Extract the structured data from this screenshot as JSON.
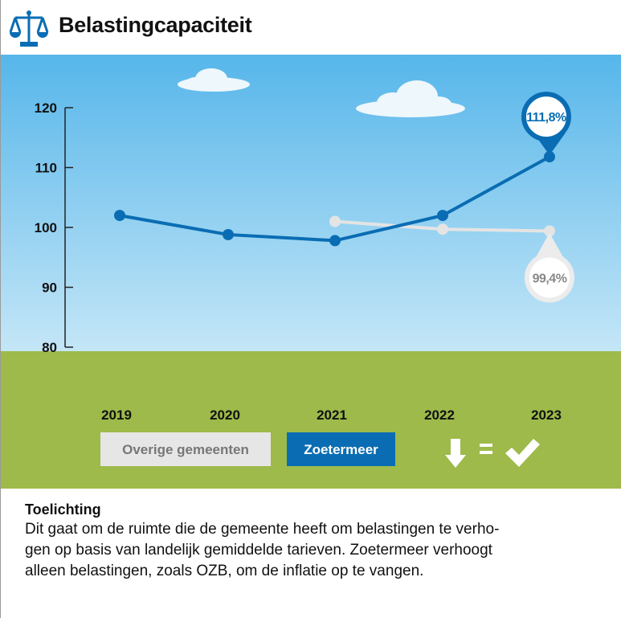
{
  "header": {
    "title": "Belastingcapaciteit"
  },
  "chart_data": {
    "type": "line",
    "categories": [
      "2019",
      "2020",
      "2021",
      "2022",
      "2023"
    ],
    "series": [
      {
        "name": "Overige gemeenten",
        "color": "#e4e4e4",
        "values": [
          null,
          null,
          101.0,
          99.7,
          99.4
        ],
        "value_labels": [
          null,
          null,
          null,
          null,
          "99,4%"
        ]
      },
      {
        "name": "Zoetermeer",
        "color": "#0a6db3",
        "values": [
          102.0,
          98.8,
          97.8,
          102.0,
          111.8
        ],
        "value_labels": [
          null,
          null,
          null,
          null,
          "111,8%"
        ]
      }
    ],
    "ylim": [
      80,
      120
    ],
    "yticks": [
      80,
      90,
      100,
      110,
      120
    ]
  },
  "explanation": {
    "title": "Toelichting",
    "lines": [
      "Dit gaat om de ruimte die de gemeente heeft om belastingen te verho-",
      "gen op basis van landelijk gemiddelde tarieven. Zoetermeer verhoogt",
      "alleen belastingen, zoals OZB, om de inflatie op te vangen."
    ]
  }
}
